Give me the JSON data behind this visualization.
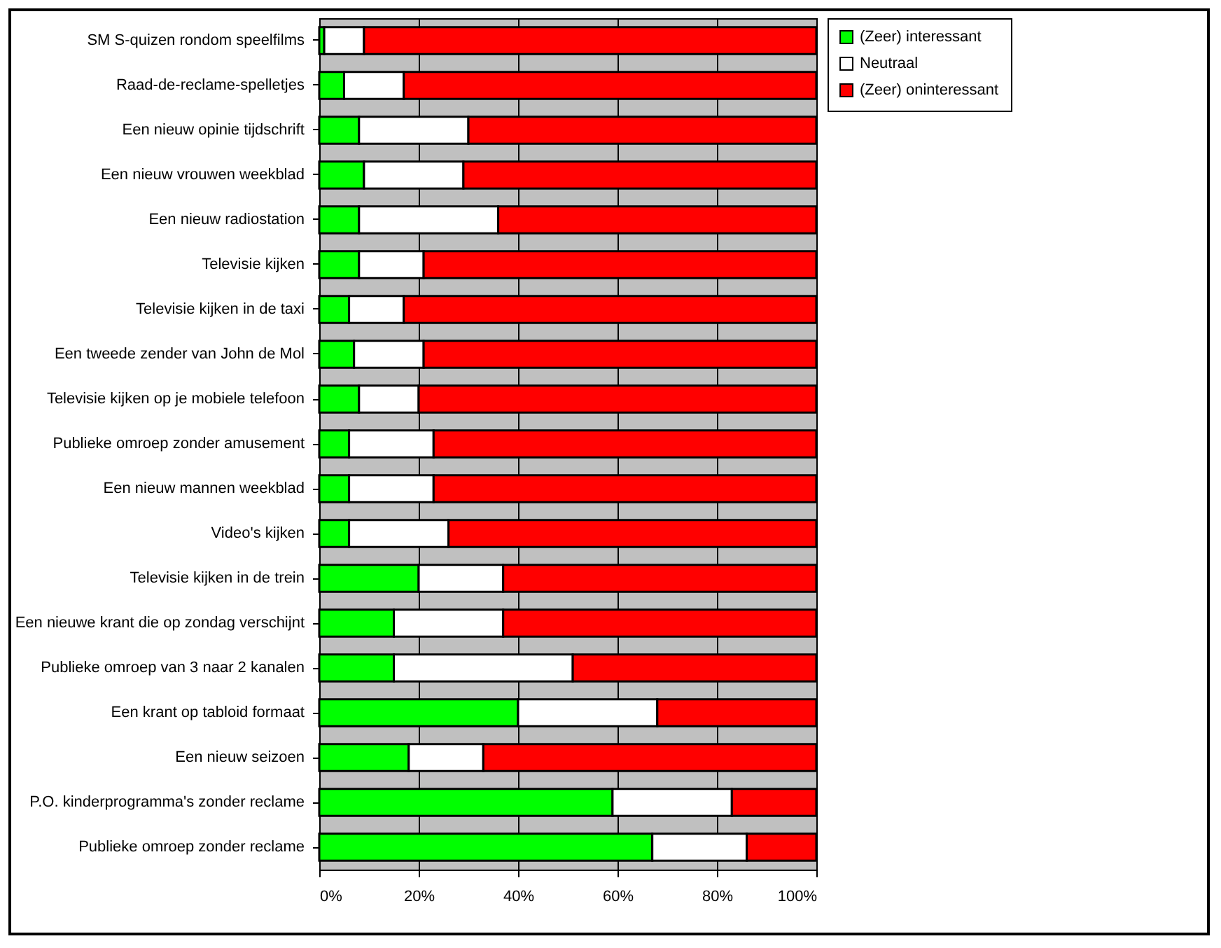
{
  "chart_data": {
    "type": "bar",
    "orientation": "horizontal",
    "stacked": true,
    "categories": [
      "SM S-quizen rondom speelfilms",
      "Raad-de-reclame-spelletjes",
      "Een nieuw opinie tijdschrift",
      "Een nieuw vrouwen weekblad",
      "Een nieuw radiostation",
      "Televisie kijken",
      "Televisie kijken in de taxi",
      "Een tweede zender van John de Mol",
      "Televisie kijken op je mobiele telefoon",
      "Publieke omroep zonder amusement",
      "Een nieuw mannen weekblad",
      "Video's kijken",
      "Televisie kijken in de trein",
      "Een nieuwe krant die op zondag verschijnt",
      "Publieke omroep van 3 naar 2 kanalen",
      "Een krant op tabloid formaat",
      "Een nieuw seizoen",
      "P.O. kinderprogramma's zonder reclame",
      "Publieke omroep zonder reclame"
    ],
    "series": [
      {
        "name": "(Zeer) interessant",
        "color": "#00ff00",
        "values": [
          1,
          5,
          8,
          9,
          8,
          8,
          6,
          7,
          8,
          6,
          6,
          6,
          20,
          15,
          15,
          40,
          18,
          59,
          67
        ]
      },
      {
        "name": "Neutraal",
        "color": "#ffffff",
        "values": [
          8,
          12,
          22,
          20,
          28,
          13,
          11,
          14,
          12,
          17,
          17,
          20,
          17,
          22,
          36,
          28,
          15,
          24,
          19
        ]
      },
      {
        "name": "(Zeer) oninteressant",
        "color": "#ff0000",
        "values": [
          91,
          83,
          70,
          71,
          64,
          79,
          83,
          79,
          80,
          77,
          77,
          74,
          63,
          63,
          49,
          32,
          67,
          17,
          14
        ]
      }
    ],
    "xlim": [
      0,
      100
    ],
    "xticks": [
      {
        "value": 0,
        "label": "0%"
      },
      {
        "value": 20,
        "label": "20%"
      },
      {
        "value": 40,
        "label": "40%"
      },
      {
        "value": 60,
        "label": "60%"
      },
      {
        "value": 80,
        "label": "80%"
      },
      {
        "value": 100,
        "label": "100%"
      }
    ],
    "grid": "x",
    "legend": "right"
  }
}
